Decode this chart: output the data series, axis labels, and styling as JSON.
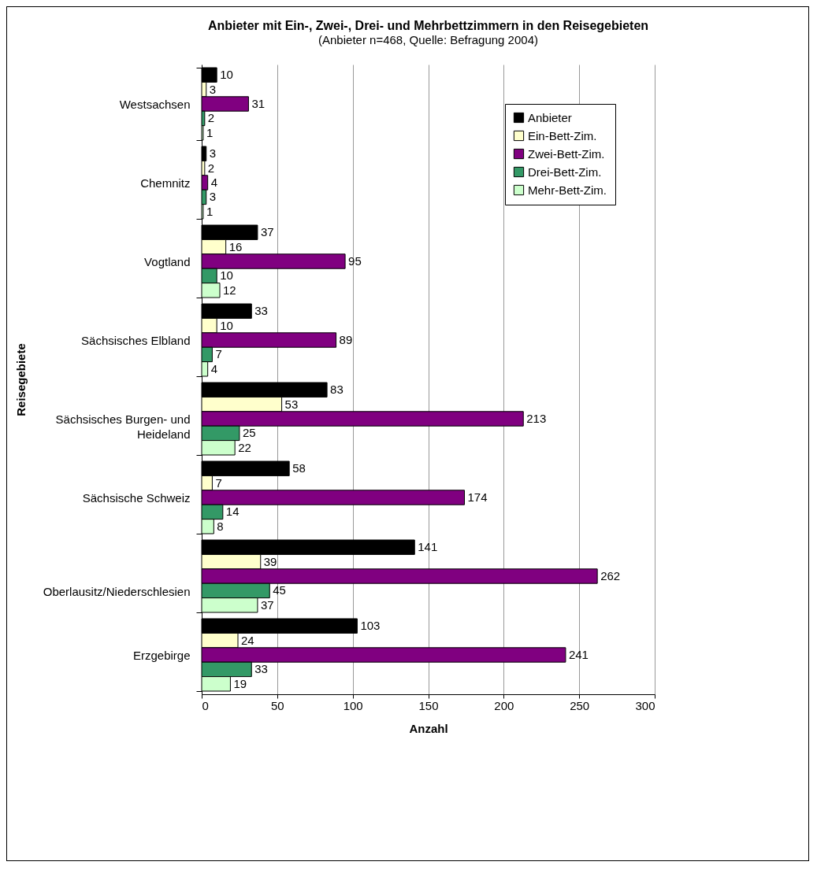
{
  "chart_data": {
    "type": "bar",
    "orientation": "horizontal",
    "title": "Anbieter mit Ein-, Zwei-, Drei- und Mehrbettzimmern in den Reisegebieten",
    "subtitle": "(Anbieter n=468, Quelle: Befragung 2004)",
    "xlabel": "Anzahl",
    "ylabel": "Reisegebiete",
    "categories": [
      "Westsachsen",
      "Chemnitz",
      "Vogtland",
      "Sächsisches Elbland",
      "Sächsisches Burgen- und Heideland",
      "Sächsische Schweiz",
      "Oberlausitz/Niederschlesien",
      "Erzgebirge"
    ],
    "series": [
      {
        "name": "Anbieter",
        "color": "#000000",
        "values": [
          10,
          3,
          37,
          33,
          83,
          58,
          141,
          103
        ]
      },
      {
        "name": "Ein-Bett-Zim.",
        "color": "#ffffcc",
        "values": [
          3,
          2,
          16,
          10,
          53,
          7,
          39,
          24
        ]
      },
      {
        "name": "Zwei-Bett-Zim.",
        "color": "#800080",
        "values": [
          31,
          4,
          95,
          89,
          213,
          174,
          262,
          241
        ]
      },
      {
        "name": "Drei-Bett-Zim.",
        "color": "#339966",
        "values": [
          2,
          3,
          10,
          7,
          25,
          14,
          45,
          33
        ]
      },
      {
        "name": "Mehr-Bett-Zim.",
        "color": "#ccffcc",
        "values": [
          1,
          1,
          12,
          4,
          22,
          8,
          37,
          19
        ]
      }
    ],
    "xlim": [
      0,
      300
    ],
    "xticks": [
      0,
      50,
      100,
      150,
      200,
      250,
      300
    ],
    "grid": "x",
    "legend": "top right",
    "data_labels": true
  }
}
